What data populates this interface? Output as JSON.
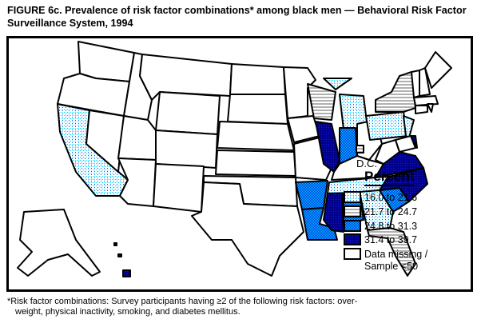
{
  "title": "FIGURE 6c. Prevalence of risk factor combinations* among black men — Behavioral Risk Factor Surveillance System, 1994",
  "legend": {
    "title": "Percent",
    "items": [
      {
        "id": "c1",
        "label": "16.0 to 21.6",
        "pattern": "light-cyan-dots"
      },
      {
        "id": "c2",
        "label": "21.7 to 24.7",
        "pattern": "gray-stripes"
      },
      {
        "id": "c3",
        "label": "24.8 to 31.3",
        "pattern": "medium-blue-checker"
      },
      {
        "id": "c4",
        "label": "31.4 to 39.7",
        "pattern": "dark-navy"
      },
      {
        "id": "c0",
        "label_line1": "Data missing /",
        "label_line2": "Sample <50",
        "pattern": "white"
      }
    ]
  },
  "dc_label": "D.C.",
  "colors": {
    "light": "#00ffff",
    "stripe": "#a0a0a0",
    "medium": "#3070ff",
    "dark": "#00008b"
  },
  "states": {
    "CA": "c1",
    "MI": "c1",
    "PA": "c1",
    "NJ": "c1",
    "TN": "c1",
    "GA": "c1",
    "WI": "c2",
    "NY": "c2",
    "FL": "c2",
    "DC": "c2",
    "IN": "c3",
    "AR": "c3",
    "LA": "c3",
    "AL": "c3",
    "SC": "c3",
    "IL": "c4",
    "MS": "c4",
    "VA": "c4",
    "NC": "c4",
    "DE": "c4",
    "HI": "c4",
    "WA": "c0",
    "OR": "c0",
    "NV": "c0",
    "ID": "c0",
    "MT": "c0",
    "WY": "c0",
    "UT": "c0",
    "AZ": "c0",
    "CO": "c0",
    "NM": "c0",
    "ND": "c0",
    "SD": "c0",
    "NE": "c0",
    "KS": "c0",
    "OK": "c0",
    "TX": "c0",
    "MN": "c0",
    "IA": "c0",
    "MO": "c0",
    "KY": "c0",
    "OH": "c0",
    "WV": "c0",
    "MD": "c0",
    "VT": "c0",
    "NH": "c0",
    "ME": "c0",
    "MA": "c0",
    "CT": "c0",
    "RI": "c0",
    "AK": "c0"
  },
  "footnote_line1": "*Risk factor combinations: Survey participants having ≥2 of the following risk factors: over-",
  "footnote_line2": "weight, physical inactivity, smoking, and diabetes mellitus."
}
